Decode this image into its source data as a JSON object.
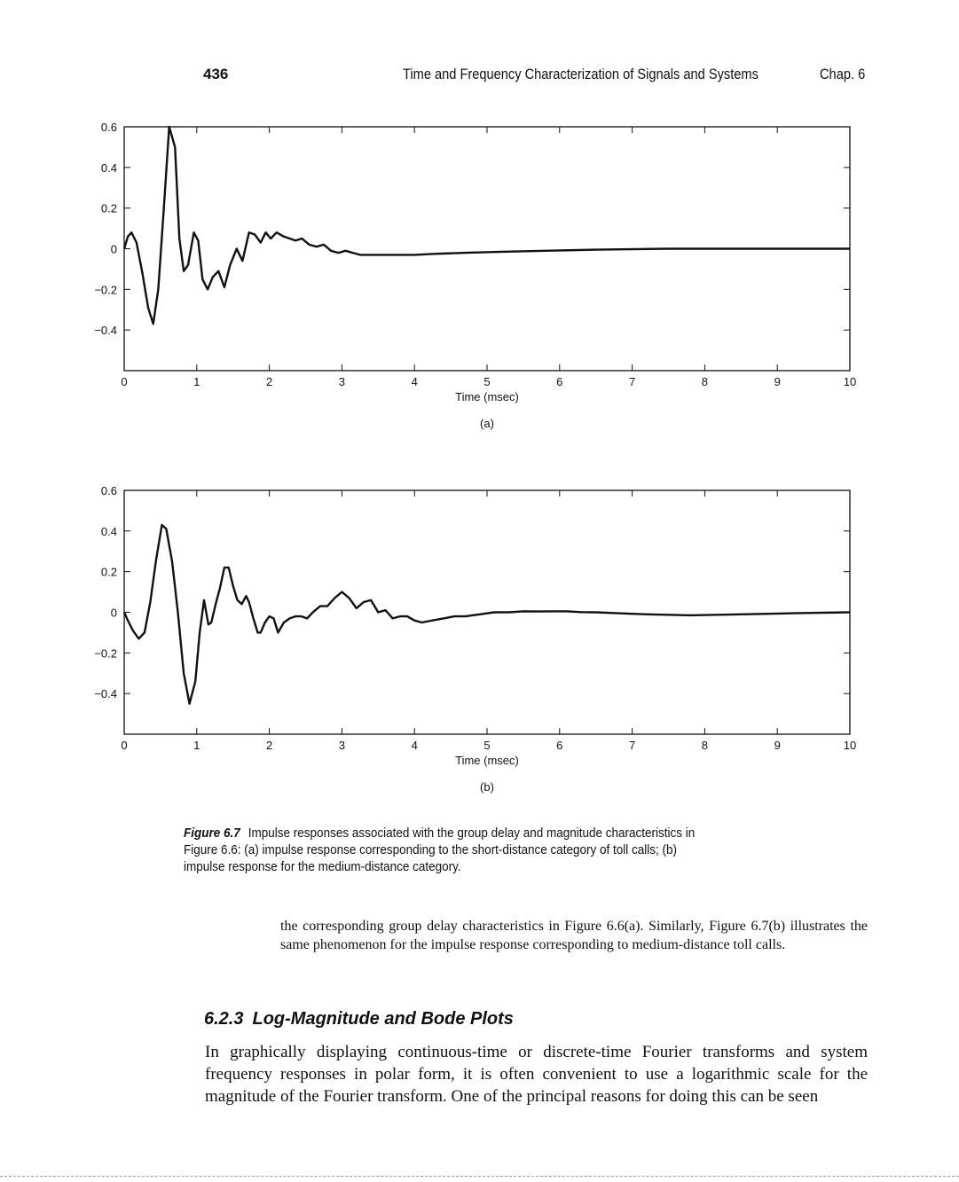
{
  "header": {
    "page_number": "436",
    "running_title": "Time and Frequency Characterization of Signals and Systems",
    "chapter": "Chap. 6"
  },
  "chart_data": [
    {
      "type": "line",
      "panel_label": "(a)",
      "xlabel": "Time (msec)",
      "ylabel": "",
      "xlim": [
        0,
        10
      ],
      "ylim": [
        -0.6,
        0.6
      ],
      "xticks": [
        "0",
        "1",
        "2",
        "3",
        "4",
        "5",
        "6",
        "7",
        "8",
        "9",
        "10"
      ],
      "yticks": [
        "0.6",
        "0.4",
        "0.2",
        "0",
        "−0.2",
        "−0.4"
      ],
      "ytick_values": [
        0.6,
        0.4,
        0.2,
        0,
        -0.2,
        -0.4
      ],
      "x": [
        0,
        0.05,
        0.1,
        0.17,
        0.25,
        0.33,
        0.4,
        0.47,
        0.55,
        0.62,
        0.7,
        0.76,
        0.82,
        0.88,
        0.96,
        1.02,
        1.08,
        1.15,
        1.22,
        1.3,
        1.38,
        1.46,
        1.55,
        1.63,
        1.72,
        1.8,
        1.88,
        1.95,
        2.02,
        2.1,
        2.2,
        2.28,
        2.36,
        2.45,
        2.55,
        2.65,
        2.75,
        2.85,
        2.95,
        3.05,
        3.15,
        3.25,
        3.35,
        3.5,
        3.65,
        3.8,
        4.0,
        4.3,
        4.7,
        5.2,
        5.8,
        6.5,
        7.5,
        8.5,
        9.5,
        10
      ],
      "y": [
        0.0,
        0.06,
        0.08,
        0.03,
        -0.12,
        -0.29,
        -0.37,
        -0.2,
        0.22,
        0.6,
        0.5,
        0.05,
        -0.11,
        -0.08,
        0.08,
        0.04,
        -0.15,
        -0.2,
        -0.14,
        -0.11,
        -0.19,
        -0.08,
        0.0,
        -0.06,
        0.08,
        0.07,
        0.03,
        0.08,
        0.05,
        0.08,
        0.06,
        0.05,
        0.04,
        0.05,
        0.02,
        0.01,
        0.02,
        -0.01,
        -0.02,
        -0.01,
        -0.02,
        -0.03,
        -0.03,
        -0.03,
        -0.03,
        -0.03,
        -0.03,
        -0.025,
        -0.02,
        -0.015,
        -0.01,
        -0.005,
        0.0,
        0.0,
        0.0,
        0.0
      ]
    },
    {
      "type": "line",
      "panel_label": "(b)",
      "xlabel": "Time (msec)",
      "ylabel": "",
      "xlim": [
        0,
        10
      ],
      "ylim": [
        -0.6,
        0.6
      ],
      "xticks": [
        "0",
        "1",
        "2",
        "3",
        "4",
        "5",
        "6",
        "7",
        "8",
        "9",
        "10"
      ],
      "yticks": [
        "0.6",
        "0.4",
        "0.2",
        "0",
        "−0.2",
        "−0.4"
      ],
      "ytick_values": [
        0.6,
        0.4,
        0.2,
        0,
        -0.2,
        -0.4
      ],
      "x": [
        0,
        0.05,
        0.12,
        0.2,
        0.28,
        0.36,
        0.44,
        0.52,
        0.58,
        0.66,
        0.74,
        0.82,
        0.9,
        0.98,
        1.04,
        1.1,
        1.16,
        1.2,
        1.26,
        1.32,
        1.38,
        1.44,
        1.5,
        1.56,
        1.62,
        1.68,
        1.72,
        1.78,
        1.84,
        1.88,
        1.94,
        2.0,
        2.06,
        2.12,
        2.2,
        2.28,
        2.36,
        2.44,
        2.52,
        2.6,
        2.7,
        2.8,
        2.9,
        3.0,
        3.1,
        3.2,
        3.3,
        3.4,
        3.5,
        3.6,
        3.7,
        3.8,
        3.9,
        4.0,
        4.1,
        4.25,
        4.4,
        4.55,
        4.7,
        4.9,
        5.1,
        5.3,
        5.5,
        5.7,
        5.9,
        6.1,
        6.3,
        6.5,
        6.8,
        7.2,
        7.8,
        8.5,
        9.2,
        10
      ],
      "y": [
        0.0,
        -0.04,
        -0.09,
        -0.13,
        -0.1,
        0.05,
        0.26,
        0.43,
        0.41,
        0.25,
        0.0,
        -0.3,
        -0.45,
        -0.34,
        -0.1,
        0.06,
        -0.06,
        -0.05,
        0.04,
        0.12,
        0.22,
        0.22,
        0.13,
        0.06,
        0.04,
        0.08,
        0.05,
        -0.03,
        -0.1,
        -0.1,
        -0.05,
        -0.02,
        -0.03,
        -0.1,
        -0.05,
        -0.03,
        -0.02,
        -0.02,
        -0.03,
        0.0,
        0.03,
        0.03,
        0.07,
        0.1,
        0.07,
        0.02,
        0.05,
        0.06,
        0.0,
        0.01,
        -0.03,
        -0.02,
        -0.02,
        -0.04,
        -0.05,
        -0.04,
        -0.03,
        -0.02,
        -0.02,
        -0.01,
        0.0,
        0.0,
        0.005,
        0.004,
        0.005,
        0.005,
        0.001,
        0.0,
        -0.005,
        -0.01,
        -0.015,
        -0.01,
        -0.005,
        0.0
      ]
    }
  ],
  "caption": {
    "label": "Figure 6.7",
    "text": "Impulse responses associated with the group delay and magnitude characteristics in Figure 6.6: (a) impulse response corresponding to the short-distance category of toll calls; (b) impulse response for the medium-distance category."
  },
  "continuation_text": "the corresponding group delay characteristics in Figure 6.6(a). Similarly, Figure 6.7(b) illustrates the same phenomenon for the impulse response corresponding to medium-distance toll calls.",
  "section": {
    "number": "6.2.3",
    "title": "Log-Magnitude and Bode Plots"
  },
  "body_text": "In graphically displaying continuous-time or discrete-time Fourier transforms and system frequency responses in polar form, it is often convenient to use a logarithmic scale for the magnitude of the Fourier transform. One of the principal reasons for doing this can be seen"
}
